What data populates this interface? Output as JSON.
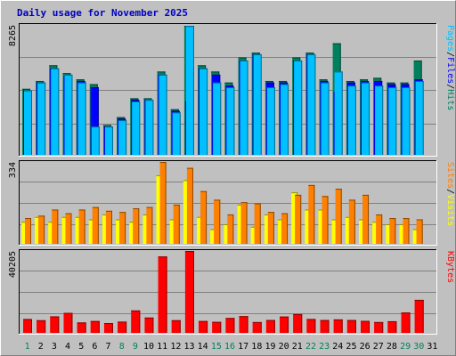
{
  "title": "Daily usage for November 2025",
  "colors": {
    "pages": "#00c0ff",
    "files": "#0000ff",
    "hits": "#00805c",
    "visits": "#ffff00",
    "sites": "#ff8000",
    "kbytes": "#ff0000",
    "weekend_day": "#00805c",
    "weekday": "#000000",
    "background": "#c0c0c0"
  },
  "days": [
    "1",
    "2",
    "3",
    "4",
    "5",
    "6",
    "7",
    "8",
    "9",
    "10",
    "11",
    "12",
    "13",
    "14",
    "15",
    "16",
    "17",
    "18",
    "19",
    "20",
    "21",
    "22",
    "23",
    "24",
    "25",
    "26",
    "27",
    "28",
    "29",
    "30",
    "31"
  ],
  "weekend_days": [
    1,
    8,
    9,
    15,
    16,
    22,
    23,
    29,
    30
  ],
  "panels": [
    {
      "max_label": "8265",
      "right_labels": [
        {
          "text": "Pages",
          "key": "pages"
        },
        {
          "text": "/",
          "key": "weekday"
        },
        {
          "text": "Files",
          "key": "files"
        },
        {
          "text": "/",
          "key": "weekday"
        },
        {
          "text": "Hits",
          "key": "hits"
        }
      ]
    },
    {
      "max_label": "334",
      "right_labels": [
        {
          "text": "Sites",
          "key": "sites"
        },
        {
          "text": "/",
          "key": "weekday"
        },
        {
          "text": "Visits",
          "key": "visits"
        }
      ]
    },
    {
      "max_label": "40205",
      "right_labels": [
        {
          "text": "KBytes",
          "key": "kbytes"
        }
      ]
    }
  ],
  "chart_data": [
    {
      "type": "bar",
      "ylim": [
        0,
        8265
      ],
      "grid": true,
      "categories": [
        "1",
        "2",
        "3",
        "4",
        "5",
        "6",
        "7",
        "8",
        "9",
        "10",
        "11",
        "12",
        "13",
        "14",
        "15",
        "16",
        "17",
        "18",
        "19",
        "20",
        "21",
        "22",
        "23",
        "24",
        "25",
        "26",
        "27",
        "28",
        "29",
        "30"
      ],
      "series": [
        {
          "name": "Hits",
          "values": [
            4200,
            4700,
            5700,
            5200,
            4800,
            4500,
            1900,
            2400,
            3600,
            3600,
            5300,
            2900,
            8200,
            5700,
            5300,
            4600,
            6200,
            6500,
            4700,
            4700,
            6200,
            6500,
            4800,
            7100,
            4700,
            4800,
            4900,
            4600,
            4600,
            6000
          ]
        },
        {
          "name": "Files",
          "values": [
            4100,
            4600,
            5500,
            5000,
            4700,
            4300,
            1800,
            2300,
            3500,
            3500,
            5100,
            2800,
            3400,
            5500,
            5100,
            4400,
            6000,
            6400,
            4600,
            4600,
            6000,
            6400,
            4700,
            4000,
            4600,
            4700,
            4700,
            4500,
            4500,
            4800
          ]
        },
        {
          "name": "Pages",
          "values": [
            4100,
            4600,
            5500,
            5100,
            4600,
            1800,
            1800,
            2200,
            3400,
            3500,
            5100,
            2700,
            8200,
            5500,
            4600,
            4300,
            6000,
            6400,
            4300,
            4500,
            6000,
            6400,
            4600,
            5300,
            4400,
            4600,
            4400,
            4300,
            4300,
            4700
          ]
        }
      ]
    },
    {
      "type": "bar",
      "ylim": [
        0,
        334
      ],
      "grid": true,
      "categories": [
        "1",
        "2",
        "3",
        "4",
        "5",
        "6",
        "7",
        "8",
        "9",
        "10",
        "11",
        "12",
        "13",
        "14",
        "15",
        "16",
        "17",
        "18",
        "19",
        "20",
        "21",
        "22",
        "23",
        "24",
        "25",
        "26",
        "27",
        "28",
        "29",
        "30"
      ],
      "series": [
        {
          "name": "Visits",
          "values": [
            90,
            110,
            90,
            110,
            110,
            100,
            120,
            100,
            90,
            120,
            280,
            100,
            260,
            110,
            60,
            80,
            160,
            70,
            120,
            100,
            210,
            140,
            140,
            100,
            110,
            100,
            90,
            80,
            80,
            60
          ]
        },
        {
          "name": "Sites",
          "values": [
            105,
            115,
            140,
            125,
            140,
            150,
            135,
            130,
            145,
            150,
            334,
            160,
            310,
            215,
            180,
            120,
            170,
            165,
            130,
            125,
            200,
            240,
            195,
            225,
            180,
            200,
            120,
            105,
            105,
            100
          ]
        }
      ]
    },
    {
      "type": "bar",
      "ylim": [
        0,
        40205
      ],
      "grid": true,
      "categories": [
        "1",
        "2",
        "3",
        "4",
        "5",
        "6",
        "7",
        "8",
        "9",
        "10",
        "11",
        "12",
        "13",
        "14",
        "15",
        "16",
        "17",
        "18",
        "19",
        "20",
        "21",
        "22",
        "23",
        "24",
        "25",
        "26",
        "27",
        "28",
        "29",
        "30"
      ],
      "series": [
        {
          "name": "KBytes",
          "values": [
            6800,
            6200,
            8100,
            9800,
            5100,
            5800,
            4800,
            5500,
            11000,
            7500,
            37500,
            6200,
            40200,
            5800,
            5400,
            7300,
            8200,
            5300,
            6300,
            8000,
            9200,
            6800,
            6300,
            6600,
            6300,
            5900,
            5300,
            5700,
            10000,
            16200
          ]
        }
      ]
    }
  ]
}
